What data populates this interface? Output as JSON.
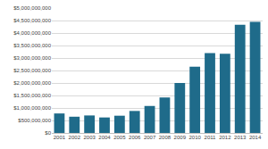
{
  "chart_data": {
    "type": "bar",
    "categories": [
      "2001",
      "2002",
      "2003",
      "2004",
      "2005",
      "2006",
      "2007",
      "2008",
      "2009",
      "2010",
      "2011",
      "2012",
      "2013",
      "2014"
    ],
    "values": [
      780000000,
      650000000,
      700000000,
      620000000,
      690000000,
      880000000,
      1080000000,
      1420000000,
      2000000000,
      2650000000,
      3200000000,
      3170000000,
      4330000000,
      4450000000
    ],
    "color": "#1f6b8a",
    "ylim": [
      0,
      5000000000
    ],
    "yticks": [
      {
        "value": 0,
        "label": "$0"
      },
      {
        "value": 500000000,
        "label": "$500,000,000"
      },
      {
        "value": 1000000000,
        "label": "$1,000,000,000"
      },
      {
        "value": 1500000000,
        "label": "$1,500,000,000"
      },
      {
        "value": 2000000000,
        "label": "$2,000,000,000"
      },
      {
        "value": 2500000000,
        "label": "$2,500,000,000"
      },
      {
        "value": 3000000000,
        "label": "$3,000,000,000"
      },
      {
        "value": 3500000000,
        "label": "$3,500,000,000"
      },
      {
        "value": 4000000000,
        "label": "$4,000,000,000"
      },
      {
        "value": 4500000000,
        "label": "$4,500,000,000"
      },
      {
        "value": 5000000000,
        "label": "$5,000,000,000"
      }
    ],
    "grid": true
  }
}
